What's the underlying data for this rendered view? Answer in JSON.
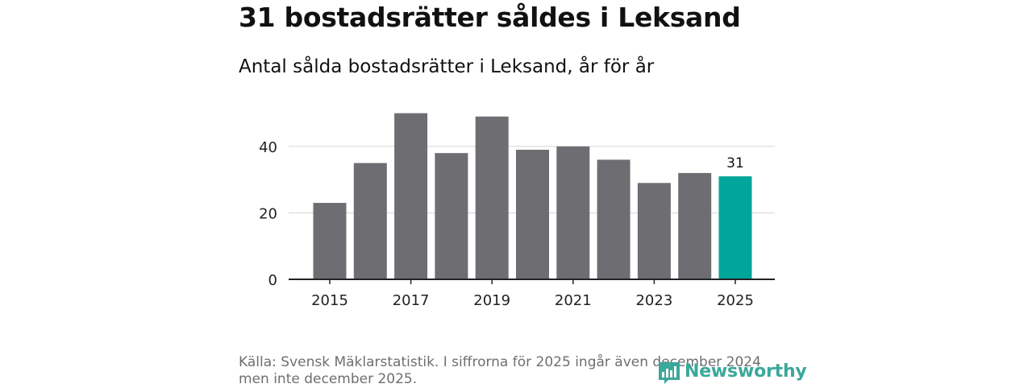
{
  "header": {
    "title": "31 bostadsrätter såldes i Leksand",
    "subtitle": "Antal sålda bostadsrätter i Leksand, år för år"
  },
  "chart_data": {
    "type": "bar",
    "categories": [
      "2015",
      "2016",
      "2017",
      "2018",
      "2019",
      "2020",
      "2021",
      "2022",
      "2023",
      "2024",
      "2025"
    ],
    "values": [
      23,
      35,
      50,
      38,
      49,
      39,
      40,
      36,
      29,
      32,
      31
    ],
    "x_tick_labels": [
      "2015",
      "2017",
      "2019",
      "2021",
      "2023",
      "2025"
    ],
    "y_ticks": [
      0,
      20,
      40
    ],
    "ylim": [
      0,
      55
    ],
    "highlight_index": 10,
    "highlight_label": "31",
    "bar_color": "#6e6d72",
    "highlight_color": "#00a69a",
    "grid": true,
    "xlabel": "",
    "ylabel": ""
  },
  "footer": {
    "source": "Källa: Svensk Mäklarstatistik. I siffrorna för 2025 ingår även december 2024 men inte december 2025.",
    "logo_text": "Newsworthy",
    "logo_color": "#3aa89a"
  }
}
